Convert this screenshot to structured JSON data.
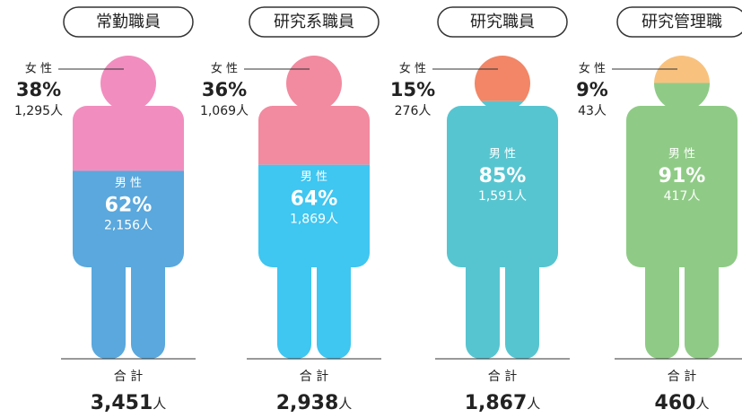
{
  "chart_data": {
    "type": "pictograph",
    "groups": [
      {
        "title": "常勤職員",
        "female": {
          "label": "女 性",
          "percent": 38,
          "percent_label": "38%",
          "count": 1295,
          "count_label": "1,295人",
          "color": "#f28dbf"
        },
        "male": {
          "label": "男 性",
          "percent": 62,
          "percent_label": "62%",
          "count": 2156,
          "count_label": "2,156人",
          "color": "#5aa8dd"
        },
        "total_label": "合 計",
        "total": 3451,
        "total_value_label": "3,451",
        "total_unit": "人"
      },
      {
        "title": "研究系職員",
        "female": {
          "label": "女 性",
          "percent": 36,
          "percent_label": "36%",
          "count": 1069,
          "count_label": "1,069人",
          "color": "#f28aa0"
        },
        "male": {
          "label": "男 性",
          "percent": 64,
          "percent_label": "64%",
          "count": 1869,
          "count_label": "1,869人",
          "color": "#3fc6f1"
        },
        "total_label": "合 計",
        "total": 2938,
        "total_value_label": "2,938",
        "total_unit": "人"
      },
      {
        "title": "研究職員",
        "female": {
          "label": "女 性",
          "percent": 15,
          "percent_label": "15%",
          "count": 276,
          "count_label": "276人",
          "color": "#f28666"
        },
        "male": {
          "label": "男 性",
          "percent": 85,
          "percent_label": "85%",
          "count": 1591,
          "count_label": "1,591人",
          "color": "#57c5d0"
        },
        "total_label": "合 計",
        "total": 1867,
        "total_value_label": "1,867",
        "total_unit": "人"
      },
      {
        "title": "研究管理職",
        "female": {
          "label": "女 性",
          "percent": 9,
          "percent_label": "9%",
          "count": 43,
          "count_label": "43人",
          "color": "#f8c27e"
        },
        "male": {
          "label": "男 性",
          "percent": 91,
          "percent_label": "91%",
          "count": 417,
          "count_label": "417人",
          "color": "#8fcb86"
        },
        "total_label": "合 計",
        "total": 460,
        "total_value_label": "460",
        "total_unit": "人"
      }
    ]
  }
}
